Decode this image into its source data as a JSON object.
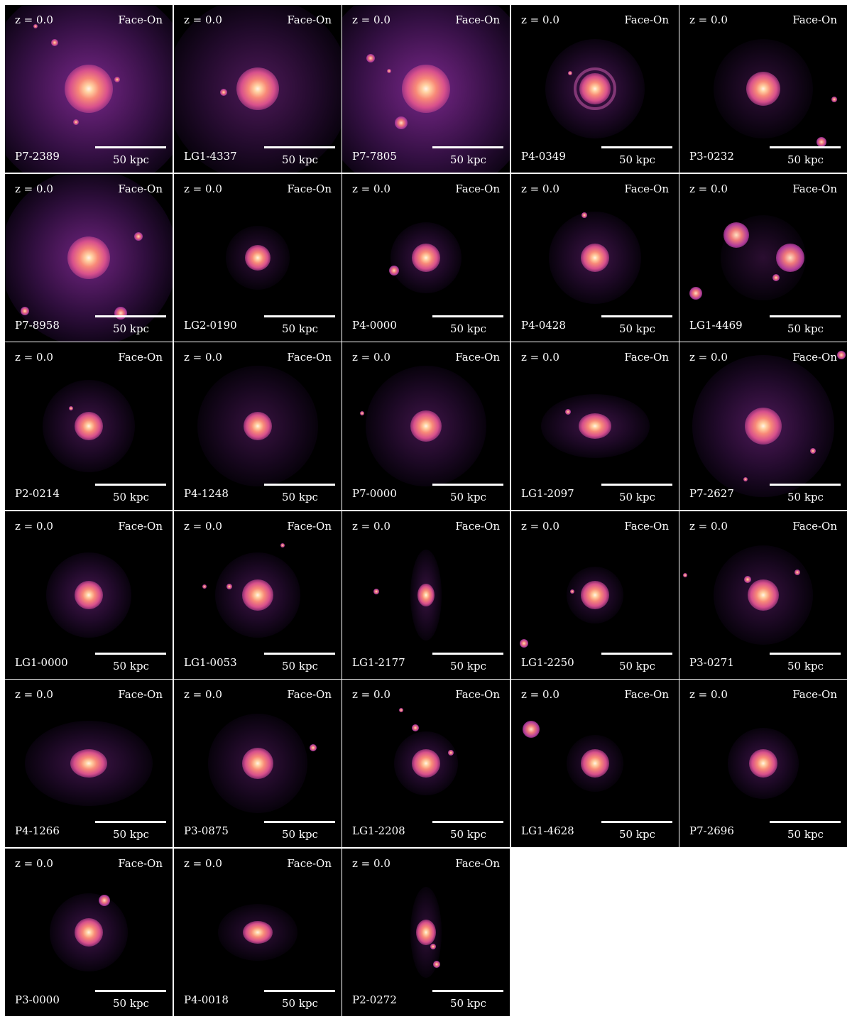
{
  "panels": [
    {
      "id": "P7-2389",
      "redshift": "z = 0.0",
      "view": "Face-On",
      "scale": "50 kpc"
    },
    {
      "id": "LG1-4337",
      "redshift": "z = 0.0",
      "view": "Face-On",
      "scale": "50 kpc"
    },
    {
      "id": "P7-7805",
      "redshift": "z = 0.0",
      "view": "Face-On",
      "scale": "50 kpc"
    },
    {
      "id": "P4-0349",
      "redshift": "z = 0.0",
      "view": "Face-On",
      "scale": "50 kpc"
    },
    {
      "id": "P3-0232",
      "redshift": "z = 0.0",
      "view": "Face-On",
      "scale": "50 kpc"
    },
    {
      "id": "P7-8958",
      "redshift": "z = 0.0",
      "view": "Face-On",
      "scale": "50 kpc"
    },
    {
      "id": "LG2-0190",
      "redshift": "z = 0.0",
      "view": "Face-On",
      "scale": "50 kpc"
    },
    {
      "id": "P4-0000",
      "redshift": "z = 0.0",
      "view": "Face-On",
      "scale": "50 kpc"
    },
    {
      "id": "P4-0428",
      "redshift": "z = 0.0",
      "view": "Face-On",
      "scale": "50 kpc"
    },
    {
      "id": "LG1-4469",
      "redshift": "z = 0.0",
      "view": "Face-On",
      "scale": "50 kpc"
    },
    {
      "id": "P2-0214",
      "redshift": "z = 0.0",
      "view": "Face-On",
      "scale": "50 kpc"
    },
    {
      "id": "P4-1248",
      "redshift": "z = 0.0",
      "view": "Face-On",
      "scale": "50 kpc"
    },
    {
      "id": "P7-0000",
      "redshift": "z = 0.0",
      "view": "Face-On",
      "scale": "50 kpc"
    },
    {
      "id": "LG1-2097",
      "redshift": "z = 0.0",
      "view": "Face-On",
      "scale": "50 kpc"
    },
    {
      "id": "P7-2627",
      "redshift": "z = 0.0",
      "view": "Face-On",
      "scale": "50 kpc"
    },
    {
      "id": "LG1-0000",
      "redshift": "z = 0.0",
      "view": "Face-On",
      "scale": "50 kpc"
    },
    {
      "id": "LG1-0053",
      "redshift": "z = 0.0",
      "view": "Face-On",
      "scale": "50 kpc"
    },
    {
      "id": "LG1-2177",
      "redshift": "z = 0.0",
      "view": "Face-On",
      "scale": "50 kpc"
    },
    {
      "id": "LG1-2250",
      "redshift": "z = 0.0",
      "view": "Face-On",
      "scale": "50 kpc"
    },
    {
      "id": "P3-0271",
      "redshift": "z = 0.0",
      "view": "Face-On",
      "scale": "50 kpc"
    },
    {
      "id": "P4-1266",
      "redshift": "z = 0.0",
      "view": "Face-On",
      "scale": "50 kpc"
    },
    {
      "id": "P3-0875",
      "redshift": "z = 0.0",
      "view": "Face-On",
      "scale": "50 kpc"
    },
    {
      "id": "LG1-2208",
      "redshift": "z = 0.0",
      "view": "Face-On",
      "scale": "50 kpc"
    },
    {
      "id": "LG1-4628",
      "redshift": "z = 0.0",
      "view": "Face-On",
      "scale": "50 kpc"
    },
    {
      "id": "P7-2696",
      "redshift": "z = 0.0",
      "view": "Face-On",
      "scale": "50 kpc"
    },
    {
      "id": "P3-0000",
      "redshift": "z = 0.0",
      "view": "Face-On",
      "scale": "50 kpc"
    },
    {
      "id": "P4-0018",
      "redshift": "z = 0.0",
      "view": "Face-On",
      "scale": "50 kpc"
    },
    {
      "id": "P2-0272",
      "redshift": "z = 0.0",
      "view": "Face-On",
      "scale": "50 kpc"
    }
  ]
}
